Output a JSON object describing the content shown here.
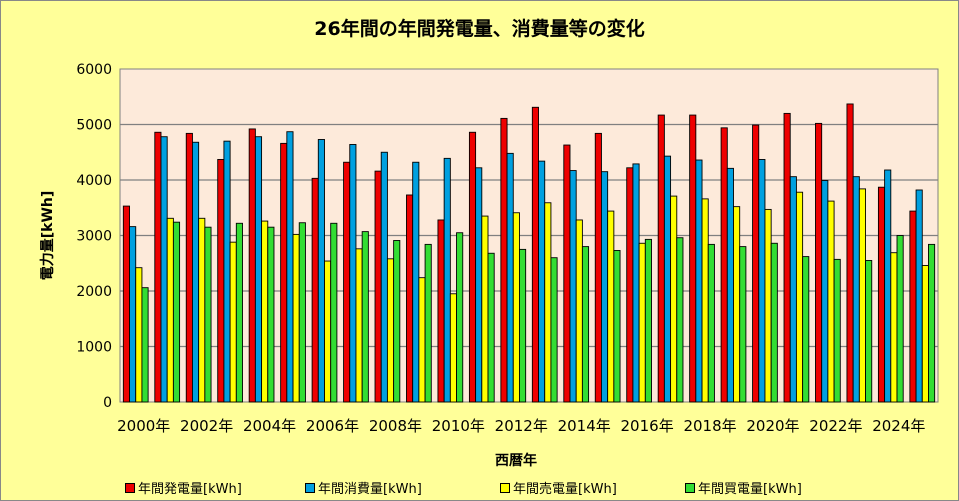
{
  "chart_data": {
    "type": "bar",
    "title": "26年間の年間発電量、消費量等の変化",
    "xlabel": "西暦年",
    "ylabel": "電力量[kWh]",
    "ylim": [
      0,
      6000
    ],
    "yticks": [
      "0",
      "1000",
      "2000",
      "3000",
      "4000",
      "5000",
      "6000"
    ],
    "grid": true,
    "legend_position": "bottom",
    "categories": [
      "2000年",
      "2001年",
      "2002年",
      "2003年",
      "2004年",
      "2005年",
      "2006年",
      "2007年",
      "2008年",
      "2009年",
      "2010年",
      "2011年",
      "2012年",
      "2013年",
      "2014年",
      "2015年",
      "2016年",
      "2017年",
      "2018年",
      "2019年",
      "2020年",
      "2021年",
      "2022年",
      "2023年",
      "2024年",
      "2025年"
    ],
    "shown_category_labels": [
      "2000年",
      "2002年",
      "2004年",
      "2006年",
      "2008年",
      "2010年",
      "2012年",
      "2014年",
      "2016年",
      "2018年",
      "2020年",
      "2022年",
      "2024年"
    ],
    "series": [
      {
        "name": "年間発電量[kWh]",
        "color": "#EE0000",
        "values": [
          3530,
          4860,
          4840,
          4370,
          4920,
          4660,
          4030,
          4320,
          4160,
          3730,
          3280,
          4860,
          5110,
          5310,
          4630,
          4840,
          4220,
          5170,
          5170,
          4940,
          4990,
          5200,
          5020,
          5370,
          3870,
          3440
        ]
      },
      {
        "name": "年間消費量[kWh]",
        "color": "#00A0E0",
        "values": [
          3160,
          4780,
          4680,
          4700,
          4780,
          4870,
          4730,
          4640,
          4500,
          4320,
          4390,
          4220,
          4480,
          4340,
          4170,
          4150,
          4290,
          4430,
          4360,
          4210,
          4370,
          4060,
          3990,
          4060,
          4180,
          3820
        ]
      },
      {
        "name": "年間売電量[kWh]",
        "color": "#FFFF00",
        "values": [
          2420,
          3310,
          3310,
          2880,
          3260,
          3020,
          2540,
          2760,
          2580,
          2240,
          1950,
          3350,
          3410,
          3590,
          3280,
          3440,
          2860,
          3710,
          3660,
          3520,
          3470,
          3780,
          3620,
          3840,
          2690,
          2460
        ]
      },
      {
        "name": "年間買電量[kWh]",
        "color": "#33DD33",
        "values": [
          2060,
          3240,
          3150,
          3220,
          3150,
          3230,
          3220,
          3070,
          2910,
          2840,
          3050,
          2680,
          2750,
          2600,
          2800,
          2730,
          2930,
          2960,
          2840,
          2800,
          2860,
          2620,
          2570,
          2550,
          3000,
          2840
        ]
      }
    ]
  }
}
